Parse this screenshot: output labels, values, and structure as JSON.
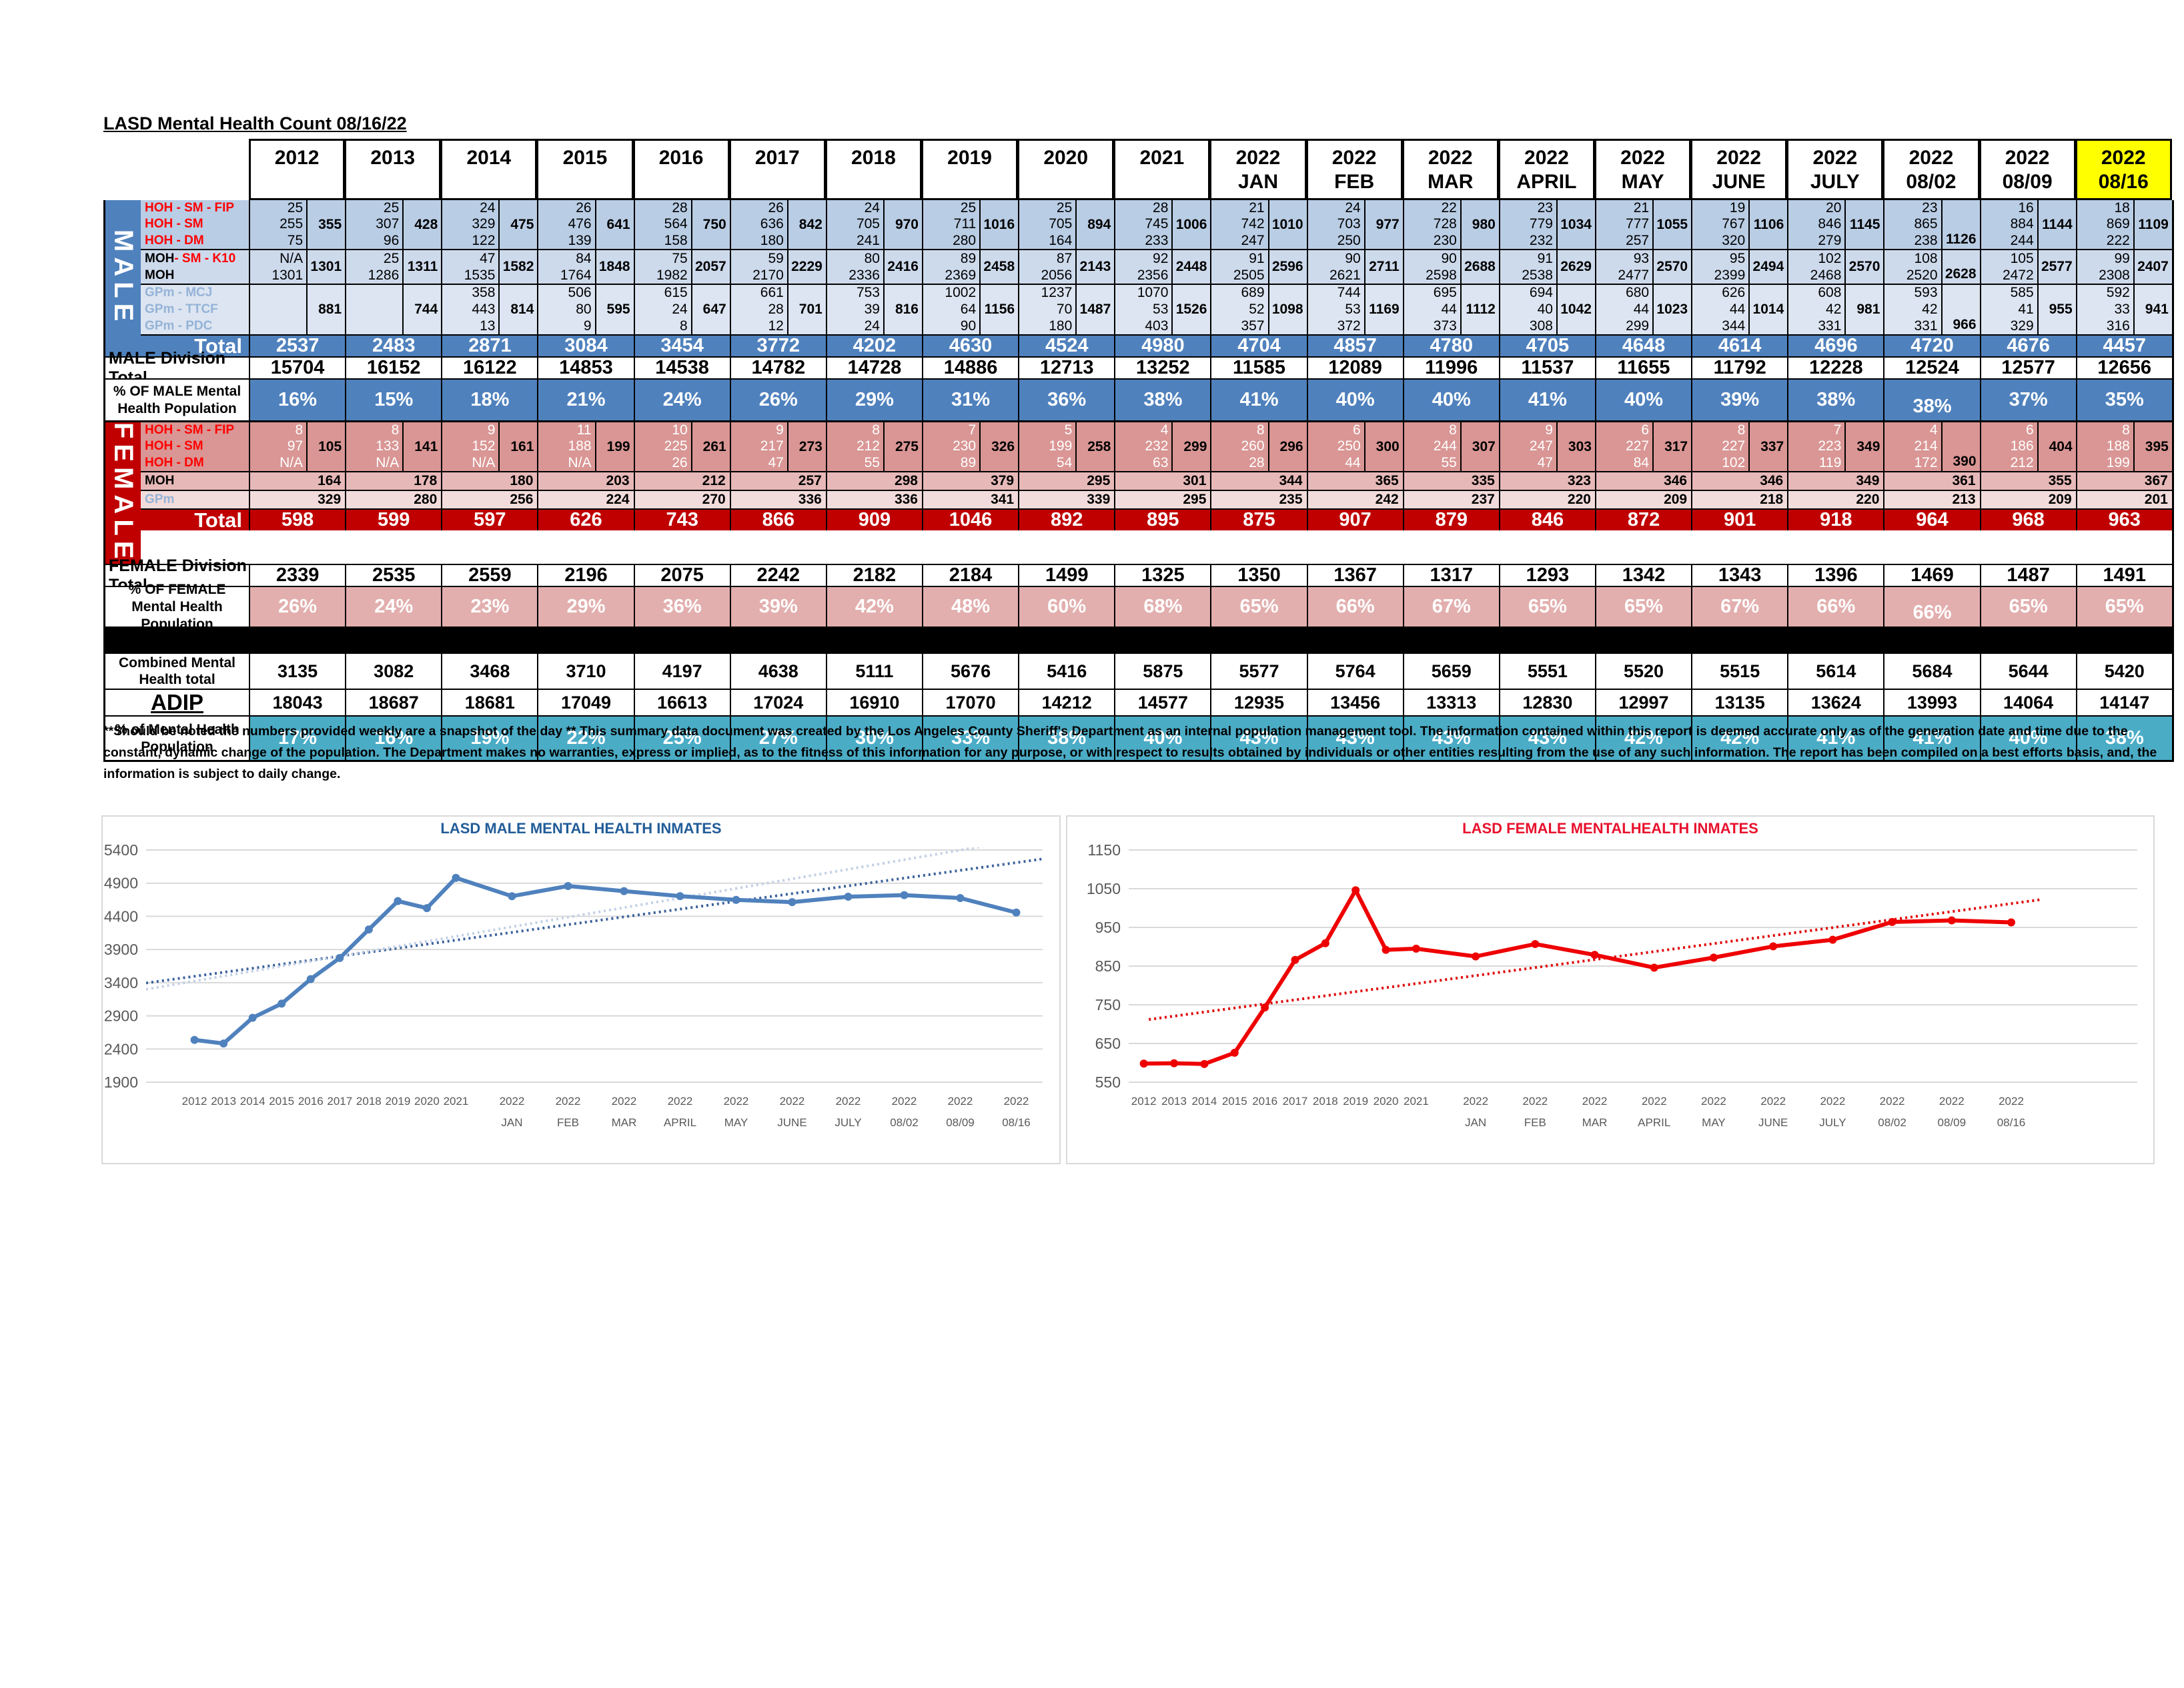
{
  "doc": {
    "title": "LASD Mental Health Count 08/16/22",
    "disclaimer": "**Should be noted the numbers provided weekly are a snapshot of the day ** This summary data document was created by the Los Angeles County Sheriff's Department as an internal population management tool.  The information contained within this report is deemed accurate only as of the generation date and time due to the constant, dynamic change of the population.  The Department makes no warranties, express or implied, as to the fitness of this information for any purpose, or with respect to results obtained by individuals or other entities resulting from the use of any such information.  The report has been compiled on a best efforts basis, and, the information is subject to daily change."
  },
  "table": {
    "columns": [
      {
        "label": "2012"
      },
      {
        "label": "2013"
      },
      {
        "label": "2014"
      },
      {
        "label": "2015"
      },
      {
        "label": "2016"
      },
      {
        "label": "2017"
      },
      {
        "label": "2018"
      },
      {
        "label": "2019"
      },
      {
        "label": "2020"
      },
      {
        "label": "2021"
      },
      {
        "label": "2022",
        "sublabel": "JAN"
      },
      {
        "label": "2022",
        "sublabel": "FEB"
      },
      {
        "label": "2022",
        "sublabel": "MAR"
      },
      {
        "label": "2022",
        "sublabel": "APRIL"
      },
      {
        "label": "2022",
        "sublabel": "MAY"
      },
      {
        "label": "2022",
        "sublabel": "JUNE"
      },
      {
        "label": "2022",
        "sublabel": "JULY"
      },
      {
        "label": "2022",
        "sublabel": "08/02"
      },
      {
        "label": "2022",
        "sublabel": "08/09"
      },
      {
        "label": "2022",
        "sublabel": "08/16",
        "highlight": true
      }
    ],
    "male": {
      "side_label": "MALE",
      "groups": [
        {
          "rows": [
            {
              "label": "HOH - SM - FIP",
              "cls": "red",
              "values": [
                25,
                25,
                24,
                26,
                28,
                26,
                24,
                25,
                25,
                28,
                21,
                24,
                22,
                23,
                21,
                19,
                20,
                23,
                16,
                18
              ]
            },
            {
              "label": "HOH - SM",
              "cls": "red",
              "values": [
                255,
                307,
                329,
                476,
                564,
                636,
                705,
                711,
                705,
                745,
                742,
                703,
                728,
                779,
                777,
                767,
                846,
                865,
                884,
                869
              ]
            },
            {
              "label": "HOH - DM",
              "cls": "red",
              "values": [
                75,
                96,
                122,
                139,
                158,
                180,
                241,
                280,
                164,
                233,
                247,
                250,
                230,
                232,
                257,
                320,
                279,
                238,
                244,
                222
              ]
            }
          ],
          "subtotals": [
            355,
            428,
            475,
            641,
            750,
            842,
            970,
            1016,
            894,
            1006,
            1010,
            977,
            980,
            1034,
            1055,
            1106,
            1145,
            1126,
            1144,
            1109
          ]
        },
        {
          "rows": [
            {
              "parts": [
                {
                  "t": "MOH",
                  "cls": "black"
                },
                {
                  "t": " - SM - K10",
                  "cls": "red"
                }
              ],
              "values": [
                "N/A",
                25,
                47,
                84,
                75,
                59,
                80,
                89,
                87,
                92,
                91,
                90,
                90,
                91,
                93,
                95,
                102,
                108,
                105,
                99
              ]
            },
            {
              "label": "MOH",
              "cls": "black",
              "values": [
                1301,
                1286,
                1535,
                1764,
                1982,
                2170,
                2336,
                2369,
                2056,
                2356,
                2505,
                2621,
                2598,
                2538,
                2477,
                2399,
                2468,
                2520,
                2472,
                2308
              ]
            }
          ],
          "subtotals": [
            1301,
            1311,
            1582,
            1848,
            2057,
            2229,
            2416,
            2458,
            2143,
            2448,
            2596,
            2711,
            2688,
            2629,
            2570,
            2494,
            2570,
            2628,
            2577,
            2407
          ]
        },
        {
          "rows": [
            {
              "label": "GPm - MCJ",
              "cls": "blue",
              "values": [
                "",
                "",
                358,
                506,
                615,
                661,
                753,
                1002,
                1237,
                1070,
                689,
                744,
                695,
                694,
                680,
                626,
                608,
                593,
                585,
                592
              ]
            },
            {
              "label": "GPm - TTCF",
              "cls": "blue",
              "values": [
                "",
                "",
                443,
                80,
                24,
                28,
                39,
                64,
                70,
                53,
                52,
                53,
                44,
                40,
                44,
                44,
                42,
                42,
                41,
                33
              ]
            },
            {
              "label": "GPm - PDC",
              "cls": "blue",
              "values": [
                "",
                "",
                13,
                9,
                8,
                12,
                24,
                90,
                180,
                403,
                357,
                372,
                373,
                308,
                299,
                344,
                331,
                331,
                329,
                316
              ]
            }
          ],
          "subtotals": [
            881,
            744,
            814,
            595,
            647,
            701,
            816,
            1156,
            1487,
            1526,
            1098,
            1169,
            1112,
            1042,
            1023,
            1014,
            981,
            966,
            955,
            941
          ]
        }
      ],
      "total_label": "Total",
      "totals": [
        2537,
        2483,
        2871,
        3084,
        3454,
        3772,
        4202,
        4630,
        4524,
        4980,
        4704,
        4857,
        4780,
        4705,
        4648,
        4614,
        4696,
        4720,
        4676,
        4457
      ],
      "division_label": "MALE Division Total",
      "division_totals": [
        15704,
        16152,
        16122,
        14853,
        14538,
        14782,
        14728,
        14886,
        12713,
        13252,
        11585,
        12089,
        11996,
        11537,
        11655,
        11792,
        12228,
        12524,
        12577,
        12656
      ],
      "pct_label": "% OF MALE Mental Health Population",
      "pct": [
        "16%",
        "15%",
        "18%",
        "21%",
        "24%",
        "26%",
        "29%",
        "31%",
        "36%",
        "38%",
        "41%",
        "40%",
        "40%",
        "41%",
        "40%",
        "39%",
        "38%",
        "38%",
        "37%",
        "35%"
      ]
    },
    "female": {
      "side_label": "FEMALE",
      "groups": [
        {
          "rows": [
            {
              "label": "HOH - SM - FIP",
              "cls": "red",
              "values": [
                8,
                8,
                9,
                11,
                10,
                9,
                8,
                7,
                5,
                4,
                8,
                6,
                8,
                9,
                6,
                8,
                7,
                4,
                6,
                8
              ]
            },
            {
              "label": "HOH - SM",
              "cls": "red",
              "values": [
                97,
                133,
                152,
                188,
                225,
                217,
                212,
                230,
                199,
                232,
                260,
                250,
                244,
                247,
                227,
                227,
                223,
                214,
                186,
                188
              ]
            },
            {
              "label": "HOH - DM",
              "cls": "red",
              "values": [
                "N/A",
                "N/A",
                "N/A",
                "N/A",
                26,
                47,
                55,
                89,
                54,
                63,
                28,
                44,
                55,
                47,
                84,
                102,
                119,
                172,
                212,
                199
              ]
            }
          ],
          "subtotals": [
            105,
            141,
            161,
            199,
            261,
            273,
            275,
            326,
            258,
            299,
            296,
            300,
            307,
            303,
            317,
            337,
            349,
            390,
            404,
            395
          ],
          "white_values": true
        },
        {
          "rows": [
            {
              "label": "MOH",
              "cls": "black"
            }
          ],
          "subtotals": [
            164,
            178,
            180,
            203,
            212,
            257,
            298,
            379,
            295,
            301,
            344,
            365,
            335,
            323,
            346,
            346,
            349,
            361,
            355,
            367
          ]
        },
        {
          "rows": [
            {
              "label": "GPm",
              "cls": "blue"
            }
          ],
          "subtotals": [
            329,
            280,
            256,
            224,
            270,
            336,
            336,
            341,
            339,
            295,
            235,
            242,
            237,
            220,
            209,
            218,
            220,
            213,
            209,
            201
          ]
        }
      ],
      "total_label": "Total",
      "totals": [
        598,
        599,
        597,
        626,
        743,
        866,
        909,
        1046,
        892,
        895,
        875,
        907,
        879,
        846,
        872,
        901,
        918,
        964,
        968,
        963
      ],
      "division_label": "FEMALE Division Total",
      "division_totals": [
        2339,
        2535,
        2559,
        2196,
        2075,
        2242,
        2182,
        2184,
        1499,
        1325,
        1350,
        1367,
        1317,
        1293,
        1342,
        1343,
        1396,
        1469,
        1487,
        1491
      ],
      "pct_label": "% OF FEMALE Mental Health Population",
      "pct": [
        "26%",
        "24%",
        "23%",
        "29%",
        "36%",
        "39%",
        "42%",
        "48%",
        "60%",
        "68%",
        "65%",
        "66%",
        "67%",
        "65%",
        "65%",
        "67%",
        "66%",
        "66%",
        "65%",
        "65%"
      ]
    },
    "combined_label": "Combined Mental Health total",
    "combined": [
      3135,
      3082,
      3468,
      3710,
      4197,
      4638,
      5111,
      5676,
      5416,
      5875,
      5577,
      5764,
      5659,
      5551,
      5520,
      5515,
      5614,
      5684,
      5644,
      5420
    ],
    "adip_label": "ADIP",
    "adip": [
      18043,
      18687,
      18681,
      17049,
      16613,
      17024,
      16910,
      17070,
      14212,
      14577,
      12935,
      13456,
      13313,
      12830,
      12997,
      13135,
      13624,
      13993,
      14064,
      14147
    ],
    "pct_combined_label": "% of Mental Health Population",
    "pct_combined": [
      "17%",
      "16%",
      "19%",
      "22%",
      "25%",
      "27%",
      "30%",
      "33%",
      "38%",
      "40%",
      "43%",
      "43%",
      "43%",
      "43%",
      "42%",
      "42%",
      "41%",
      "41%",
      "40%",
      "38%"
    ]
  },
  "chart_data": [
    {
      "type": "line",
      "title": "LASD MALE MENTAL HEALTH INMATES",
      "title_color": "#215C98",
      "line_color": "#4F81BD",
      "ylim": [
        1900,
        5400
      ],
      "y_step": 500,
      "yticks": [
        1900,
        2400,
        2900,
        3400,
        3900,
        4400,
        4900,
        5400
      ],
      "grid": true,
      "categories": [
        {
          "l1": "2012"
        },
        {
          "l1": "2013"
        },
        {
          "l1": "2014"
        },
        {
          "l1": "2015"
        },
        {
          "l1": "2016"
        },
        {
          "l1": "2017"
        },
        {
          "l1": "2018"
        },
        {
          "l1": "2019"
        },
        {
          "l1": "2020"
        },
        {
          "l1": "2021"
        },
        {
          "l1": "2022",
          "l2": "JAN"
        },
        {
          "l1": "2022",
          "l2": "FEB"
        },
        {
          "l1": "2022",
          "l2": "MAR"
        },
        {
          "l1": "2022",
          "l2": "APRIL"
        },
        {
          "l1": "2022",
          "l2": "MAY"
        },
        {
          "l1": "2022",
          "l2": "JUNE"
        },
        {
          "l1": "2022",
          "l2": "JULY"
        },
        {
          "l1": "2022",
          "l2": "08/02"
        },
        {
          "l1": "2022",
          "l2": "08/09"
        },
        {
          "l1": "2022",
          "l2": "08/16"
        }
      ],
      "values": [
        2537,
        2483,
        2871,
        3084,
        3454,
        3772,
        4202,
        4630,
        4524,
        4980,
        4704,
        4857,
        4780,
        4705,
        4648,
        4614,
        4696,
        4720,
        4676,
        4457
      ],
      "trendlines": [
        {
          "start": 3395,
          "end": 5265,
          "color": "#3B619C",
          "x0": 0.0,
          "x1": 1.0
        },
        {
          "start": 3300,
          "end": 5610,
          "color": "#C3D0E5",
          "x0": 0.0,
          "x1": 1.0
        }
      ]
    },
    {
      "type": "line",
      "title": "LASD FEMALE MENTALHEALTH INMATES",
      "title_color": "#E8112D",
      "line_color": "#EE0000",
      "ylim": [
        550,
        1150
      ],
      "y_step": 100,
      "yticks": [
        550,
        650,
        750,
        850,
        950,
        1050,
        1150
      ],
      "grid": true,
      "categories": [
        {
          "l1": "2012"
        },
        {
          "l1": "2013"
        },
        {
          "l1": "2014"
        },
        {
          "l1": "2015"
        },
        {
          "l1": "2016"
        },
        {
          "l1": "2017"
        },
        {
          "l1": "2018"
        },
        {
          "l1": "2019"
        },
        {
          "l1": "2020"
        },
        {
          "l1": "2021"
        },
        {
          "l1": "2022",
          "l2": "JAN"
        },
        {
          "l1": "2022",
          "l2": "FEB"
        },
        {
          "l1": "2022",
          "l2": "MAR"
        },
        {
          "l1": "2022",
          "l2": "APRIL"
        },
        {
          "l1": "2022",
          "l2": "MAY"
        },
        {
          "l1": "2022",
          "l2": "JUNE"
        },
        {
          "l1": "2022",
          "l2": "JULY"
        },
        {
          "l1": "2022",
          "l2": "08/02"
        },
        {
          "l1": "2022",
          "l2": "08/09"
        },
        {
          "l1": "2022",
          "l2": "08/16"
        }
      ],
      "values": [
        598,
        599,
        597,
        626,
        743,
        866,
        909,
        1046,
        892,
        895,
        875,
        907,
        879,
        846,
        872,
        901,
        918,
        964,
        968,
        963
      ],
      "trendlines": [
        {
          "start": 712,
          "end": 1022,
          "color": "#E00000",
          "x0": 0.02,
          "x1": 0.905
        }
      ]
    }
  ]
}
